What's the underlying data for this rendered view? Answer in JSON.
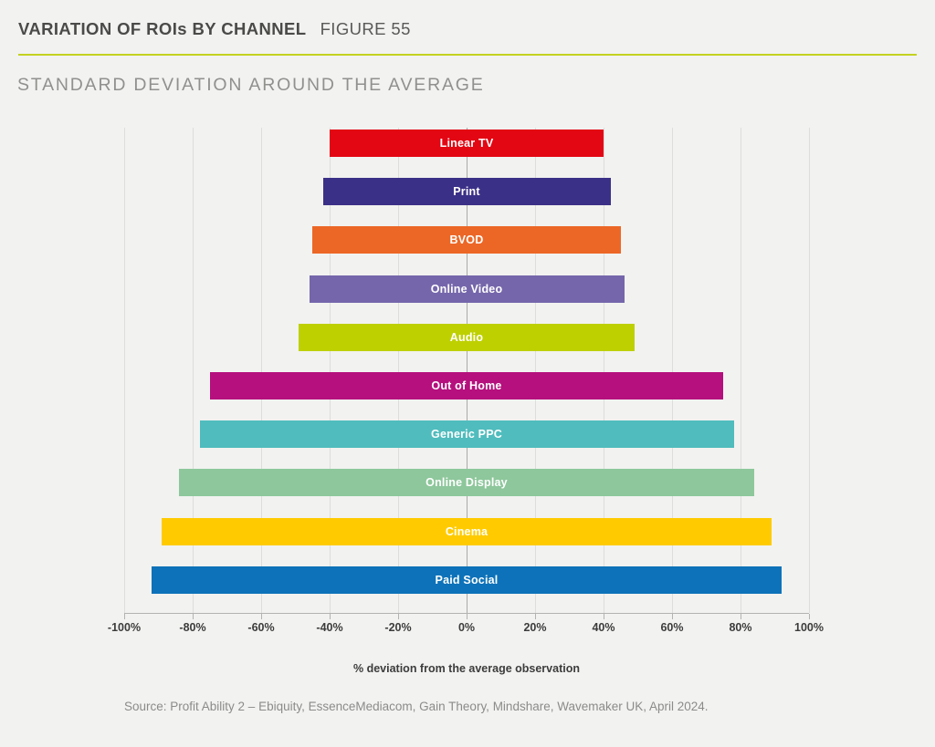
{
  "header": {
    "title": "VARIATION OF ROIs BY CHANNEL",
    "figure_label": "FIGURE 55"
  },
  "subtitle": "STANDARD DEVIATION AROUND THE AVERAGE",
  "source": "Source: Profit Ability 2 – Ebiquity, EssenceMediacom, Gain Theory, Mindshare, Wavemaker UK, April 2024.",
  "colors": {
    "divider_accent": "#c3d220",
    "background": "#f2f2f0",
    "zero_gridline": "#a9a9a7",
    "gridline": "#dddddb",
    "bar_label_text": "#ffffff"
  },
  "chart_data": {
    "type": "bar",
    "orientation": "horizontal-diverging",
    "title": "STANDARD DEVIATION AROUND THE AVERAGE",
    "xlabel": "% deviation from the average observation",
    "xlim": [
      -100,
      100
    ],
    "x_ticks": [
      -100,
      -80,
      -60,
      -40,
      -20,
      0,
      20,
      40,
      60,
      80,
      100
    ],
    "x_tick_labels": [
      "-100%",
      "-80%",
      "-60%",
      "-40%",
      "-20%",
      "0%",
      "20%",
      "40%",
      "60%",
      "80%",
      "100%"
    ],
    "grid": true,
    "legend": false,
    "bars": [
      {
        "label": "Linear TV",
        "min": -40,
        "max": 40,
        "color": "#e30613"
      },
      {
        "label": "Print",
        "min": -42,
        "max": 42,
        "color": "#3b3087"
      },
      {
        "label": "BVOD",
        "min": -45,
        "max": 45,
        "color": "#ec6726"
      },
      {
        "label": "Online Video",
        "min": -46,
        "max": 46,
        "color": "#7566ab"
      },
      {
        "label": "Audio",
        "min": -49,
        "max": 49,
        "color": "#bed000"
      },
      {
        "label": "Out of Home",
        "min": -75,
        "max": 75,
        "color": "#b5107d"
      },
      {
        "label": "Generic PPC",
        "min": -78,
        "max": 78,
        "color": "#50bcbd"
      },
      {
        "label": "Online Display",
        "min": -84,
        "max": 84,
        "color": "#8dc79b"
      },
      {
        "label": "Cinema",
        "min": -89,
        "max": 89,
        "color": "#ffcb00"
      },
      {
        "label": "Paid Social",
        "min": -92,
        "max": 92,
        "color": "#0d72b9"
      }
    ]
  }
}
